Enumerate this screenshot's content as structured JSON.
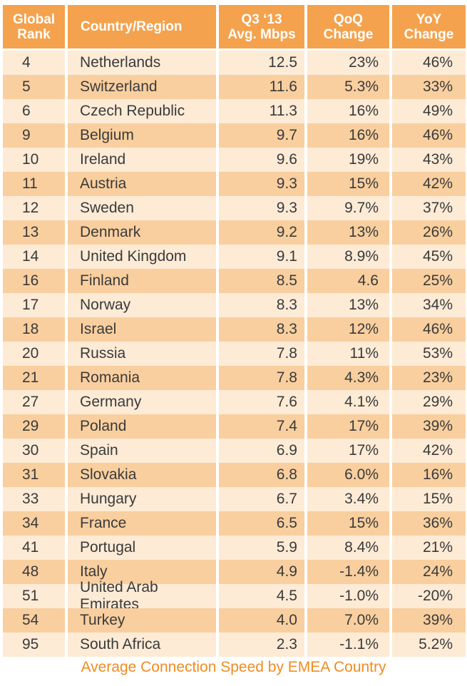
{
  "header": {
    "rank_line1": "Global",
    "rank_line2": "Rank",
    "country": "Country/Region",
    "speed_line1": "Q3 ‘13",
    "speed_line2": "Avg. Mbps",
    "qoq_line1": "QoQ",
    "qoq_line2": "Change",
    "yoy_line1": "YoY",
    "yoy_line2": "Change"
  },
  "rows": [
    {
      "rank": "4",
      "country": "Netherlands",
      "speed": "12.5",
      "qoq": "23%",
      "yoy": "46%"
    },
    {
      "rank": "5",
      "country": "Switzerland",
      "speed": "11.6",
      "qoq": "5.3%",
      "yoy": "33%"
    },
    {
      "rank": "6",
      "country": "Czech Republic",
      "speed": "11.3",
      "qoq": "16%",
      "yoy": "49%"
    },
    {
      "rank": "9",
      "country": "Belgium",
      "speed": "9.7",
      "qoq": "16%",
      "yoy": "46%"
    },
    {
      "rank": "10",
      "country": "Ireland",
      "speed": "9.6",
      "qoq": "19%",
      "yoy": "43%"
    },
    {
      "rank": "11",
      "country": "Austria",
      "speed": "9.3",
      "qoq": "15%",
      "yoy": "42%"
    },
    {
      "rank": "12",
      "country": "Sweden",
      "speed": "9.3",
      "qoq": "9.7%",
      "yoy": "37%"
    },
    {
      "rank": "13",
      "country": "Denmark",
      "speed": "9.2",
      "qoq": "13%",
      "yoy": "26%"
    },
    {
      "rank": "14",
      "country": "United Kingdom",
      "speed": "9.1",
      "qoq": "8.9%",
      "yoy": "45%"
    },
    {
      "rank": "16",
      "country": "Finland",
      "speed": "8.5",
      "qoq": "4.6",
      "yoy": "25%"
    },
    {
      "rank": "17",
      "country": "Norway",
      "speed": "8.3",
      "qoq": "13%",
      "yoy": "34%"
    },
    {
      "rank": "18",
      "country": "Israel",
      "speed": "8.3",
      "qoq": "12%",
      "yoy": "46%"
    },
    {
      "rank": "20",
      "country": "Russia",
      "speed": "7.8",
      "qoq": "11%",
      "yoy": "53%"
    },
    {
      "rank": "21",
      "country": "Romania",
      "speed": "7.8",
      "qoq": "4.3%",
      "yoy": "23%"
    },
    {
      "rank": "27",
      "country": "Germany",
      "speed": "7.6",
      "qoq": "4.1%",
      "yoy": "29%"
    },
    {
      "rank": "29",
      "country": "Poland",
      "speed": "7.4",
      "qoq": "17%",
      "yoy": "39%"
    },
    {
      "rank": "30",
      "country": "Spain",
      "speed": "6.9",
      "qoq": "17%",
      "yoy": "42%"
    },
    {
      "rank": "31",
      "country": "Slovakia",
      "speed": "6.8",
      "qoq": "6.0%",
      "yoy": "16%"
    },
    {
      "rank": "33",
      "country": "Hungary",
      "speed": "6.7",
      "qoq": "3.4%",
      "yoy": "15%"
    },
    {
      "rank": "34",
      "country": "France",
      "speed": "6.5",
      "qoq": "15%",
      "yoy": "36%"
    },
    {
      "rank": "41",
      "country": "Portugal",
      "speed": "5.9",
      "qoq": "8.4%",
      "yoy": "21%"
    },
    {
      "rank": "48",
      "country": "Italy",
      "speed": "4.9",
      "qoq": "-1.4%",
      "yoy": "24%"
    },
    {
      "rank": "51",
      "country": "United Arab Emirates",
      "speed": "4.5",
      "qoq": "-1.0%",
      "yoy": "-20%"
    },
    {
      "rank": "54",
      "country": "Turkey",
      "speed": "4.0",
      "qoq": "7.0%",
      "yoy": "39%"
    },
    {
      "rank": "95",
      "country": "South Africa",
      "speed": "2.3",
      "qoq": "-1.1%",
      "yoy": "5.2%"
    }
  ],
  "caption": "Average Connection Speed by EMEA Country",
  "colors": {
    "header_bg": "#f4a24d",
    "row_light": "#fdebd6",
    "row_dark": "#f9cf9f",
    "caption": "#f08c1f"
  }
}
